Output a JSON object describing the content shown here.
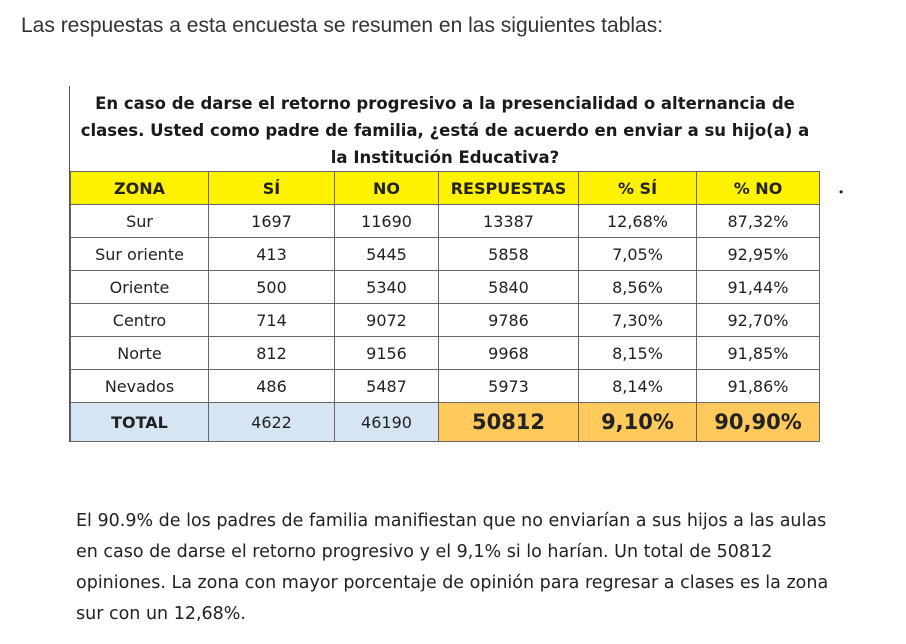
{
  "intro": "Las respuestas a esta encuesta se resumen en las siguientes tablas:",
  "question": "En caso de darse el retorno progresivo a la presencialidad o alternancia de clases. Usted como padre de familia, ¿está de acuerdo en enviar a su hijo(a) a la Institución Educativa?",
  "headers": {
    "zona": "ZONA",
    "si": "SÍ",
    "no": "NO",
    "respuestas": "RESPUESTAS",
    "pct_si": "% SÍ",
    "pct_no": "% NO"
  },
  "rows": [
    {
      "zona": "Sur",
      "si": "1697",
      "no": "11690",
      "respuestas": "13387",
      "pct_si": "12,68%",
      "pct_no": "87,32%"
    },
    {
      "zona": "Sur oriente",
      "si": "413",
      "no": "5445",
      "respuestas": "5858",
      "pct_si": "7,05%",
      "pct_no": "92,95%"
    },
    {
      "zona": "Oriente",
      "si": "500",
      "no": "5340",
      "respuestas": "5840",
      "pct_si": "8,56%",
      "pct_no": "91,44%"
    },
    {
      "zona": "Centro",
      "si": "714",
      "no": "9072",
      "respuestas": "9786",
      "pct_si": "7,30%",
      "pct_no": "92,70%"
    },
    {
      "zona": "Norte",
      "si": "812",
      "no": "9156",
      "respuestas": "9968",
      "pct_si": "8,15%",
      "pct_no": "91,85%"
    },
    {
      "zona": "Nevados",
      "si": "486",
      "no": "5487",
      "respuestas": "5973",
      "pct_si": "8,14%",
      "pct_no": "91,86%"
    }
  ],
  "total": {
    "zona": "TOTAL",
    "si": "4622",
    "no": "46190",
    "respuestas": "50812",
    "pct_si": "9,10%",
    "pct_no": "90,90%"
  },
  "stray_mark": "•",
  "summary": "El 90.9% de los padres de familia manifiestan que no enviarían a sus hijos a las aulas en caso de darse el retorno progresivo y el 9,1% si lo harían. Un total de 50812 opiniones. La zona con mayor porcentaje de opinión para regresar a clases es la zona sur con un 12,68%.",
  "colors": {
    "header_bg": "#fff200",
    "total_label_bg": "#d6e5f3",
    "total_highlight_bg": "#ffc95c"
  }
}
